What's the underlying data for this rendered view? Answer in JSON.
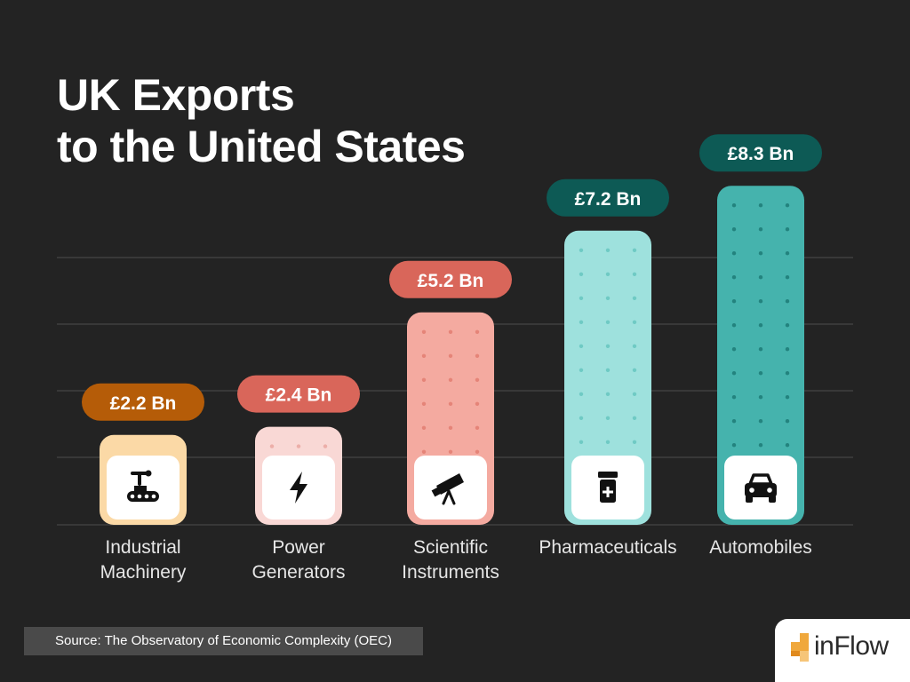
{
  "title_lines": [
    "UK Exports",
    "to the United States"
  ],
  "chart_data": {
    "type": "bar",
    "title": "UK Exports to the United States",
    "categories": [
      "Industrial Machinery",
      "Power Generators",
      "Scientific Instruments",
      "Pharmaceuticals",
      "Automobiles"
    ],
    "category_label_lines": [
      [
        "Industrial",
        "Machinery"
      ],
      [
        "Power",
        "Generators"
      ],
      [
        "Scientific",
        "Instruments"
      ],
      [
        "Pharmaceuticals"
      ],
      [
        "Automobiles"
      ]
    ],
    "values": [
      2.2,
      2.4,
      5.2,
      7.2,
      8.3
    ],
    "value_labels": [
      "£2.2 Bn",
      "£2.4 Bn",
      "£5.2 Bn",
      "£7.2 Bn",
      "£8.3 Bn"
    ],
    "unit": "£ Bn",
    "ylim": [
      0,
      9
    ],
    "grid": true,
    "icons": [
      "robot-arm-conveyor-icon",
      "lightning-bolt-icon",
      "telescope-icon",
      "pill-bottle-icon",
      "car-icon"
    ],
    "bar_colors": [
      "#fbd9a6",
      "#f9d8d5",
      "#f4aaa0",
      "#9ee1dd",
      "#45b3ad"
    ],
    "dot_colors": [
      "#f2c27a",
      "#ecaea8",
      "#e58478",
      "#6fcac4",
      "#23837e"
    ],
    "label_colors": [
      "#b55c08",
      "#d9665a",
      "#d9665a",
      "#0d5a55",
      "#0d5a55"
    ]
  },
  "source": "Source: The Observatory of Economic Complexity (OEC)",
  "logo": {
    "text": "inFlow"
  }
}
